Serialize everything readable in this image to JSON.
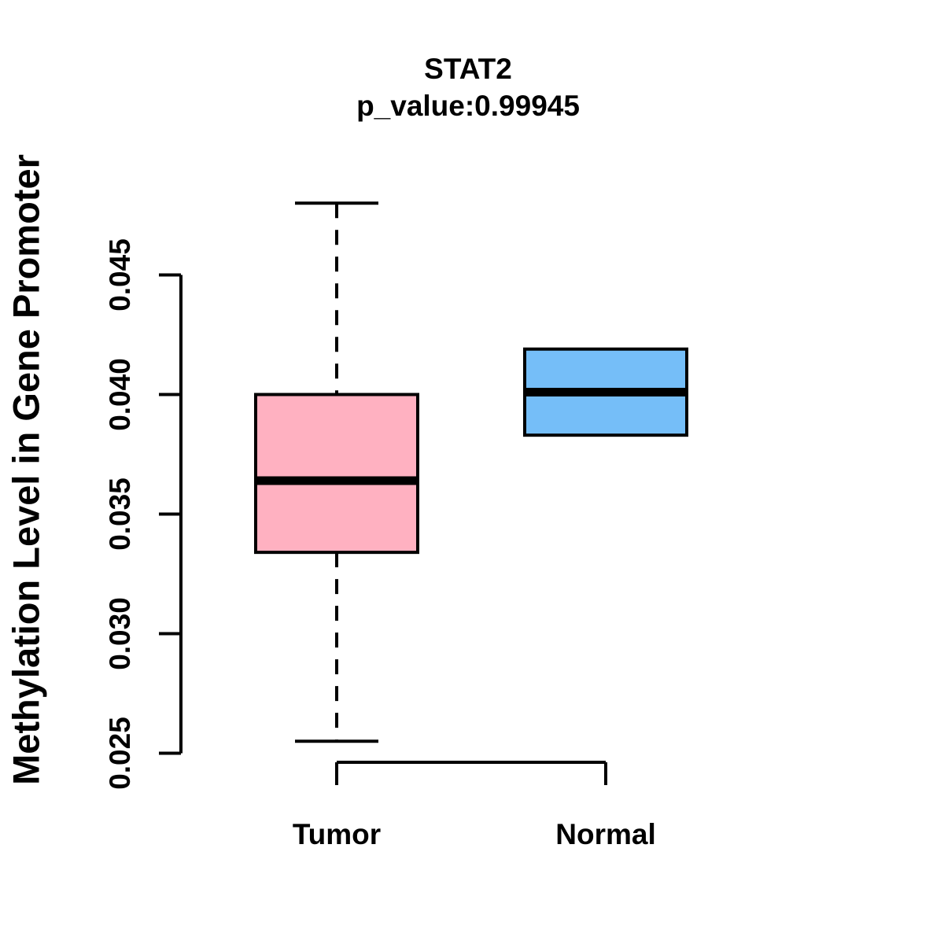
{
  "chart_data": {
    "type": "boxplot",
    "title": "STAT2",
    "subtitle": "p_value:0.99945",
    "ylabel": "Methylation Level in Gene Promoter",
    "xlabel": "",
    "categories": [
      "Tumor",
      "Normal"
    ],
    "y_ticks": [
      0.045,
      0.04,
      0.035,
      0.03,
      0.025
    ],
    "y_tick_labels": [
      "0.045",
      "0.040",
      "0.035",
      "0.030",
      "0.025"
    ],
    "ylim": [
      0.025,
      0.045
    ],
    "grid": false,
    "legend": "none",
    "series": [
      {
        "name": "Tumor",
        "whisker_low": 0.0255,
        "q1": 0.0334,
        "median": 0.0364,
        "q3": 0.04,
        "whisker_high": 0.048,
        "whisker_style": "dashed",
        "fill_color": "#FFB1C1"
      },
      {
        "name": "Normal",
        "whisker_low": 0.0383,
        "q1": 0.0383,
        "median": 0.0401,
        "q3": 0.0419,
        "whisker_high": 0.0419,
        "whisker_style": "dashed",
        "fill_color": "#75BEF8"
      }
    ],
    "colors": {
      "box_border": "#000000",
      "median": "#000000",
      "axis": "#000000",
      "text": "#000000",
      "background": "#FFFFFF"
    }
  }
}
